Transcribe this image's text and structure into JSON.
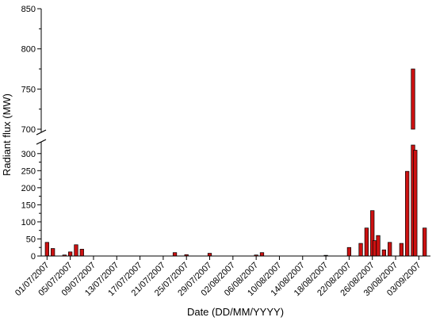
{
  "chart_data": {
    "type": "bar",
    "title": "",
    "xlabel": "Date (DD/MM/YYYY)",
    "ylabel": "Radiant flux (MW)",
    "axis_break": {
      "lower_range": [
        0,
        325
      ],
      "upper_range": [
        700,
        850
      ]
    },
    "yticks_lower": [
      "0",
      "50",
      "100",
      "150",
      "200",
      "250",
      "300"
    ],
    "yticks_upper": [
      "700",
      "750",
      "800",
      "850"
    ],
    "xtick_labels": [
      "01/07/2007",
      "05/07/2007",
      "09/07/2007",
      "13/07/2007",
      "17/07/2007",
      "21/07/2007",
      "25/07/2007",
      "29/07/2007",
      "02/08/2007",
      "06/08/2007",
      "10/08/2007",
      "14/08/2007",
      "18/08/2007",
      "22/08/2007",
      "26/08/2007",
      "30/08/2007",
      "03/09/2007"
    ],
    "bar_color": "#cc1111",
    "series": [
      {
        "values": [
          {
            "date": "2007-07-01",
            "value": 40
          },
          {
            "date": "2007-07-02",
            "value": 22
          },
          {
            "date": "2007-07-04",
            "value": 3
          },
          {
            "date": "2007-07-05",
            "value": 12
          },
          {
            "date": "2007-07-06",
            "value": 33
          },
          {
            "date": "2007-07-07",
            "value": 20
          },
          {
            "date": "2007-07-23",
            "value": 10
          },
          {
            "date": "2007-07-25",
            "value": 4
          },
          {
            "date": "2007-07-29",
            "value": 8
          },
          {
            "date": "2007-08-06",
            "value": 3
          },
          {
            "date": "2007-08-07",
            "value": 10
          },
          {
            "date": "2007-08-18",
            "value": 2
          },
          {
            "date": "2007-08-22",
            "value": 25
          },
          {
            "date": "2007-08-24",
            "value": 37
          },
          {
            "date": "2007-08-25",
            "value": 82
          },
          {
            "date": "2007-08-26",
            "value": 133
          },
          {
            "date": "2007-08-26",
            "value": 45
          },
          {
            "date": "2007-08-27",
            "value": 60
          },
          {
            "date": "2007-08-28",
            "value": 18
          },
          {
            "date": "2007-08-29",
            "value": 40
          },
          {
            "date": "2007-08-31",
            "value": 37
          },
          {
            "date": "2007-09-01",
            "value": 248
          },
          {
            "date": "2007-09-02",
            "value": 775
          },
          {
            "date": "2007-09-02",
            "value": 310
          },
          {
            "date": "2007-09-04",
            "value": 82
          }
        ]
      }
    ]
  }
}
